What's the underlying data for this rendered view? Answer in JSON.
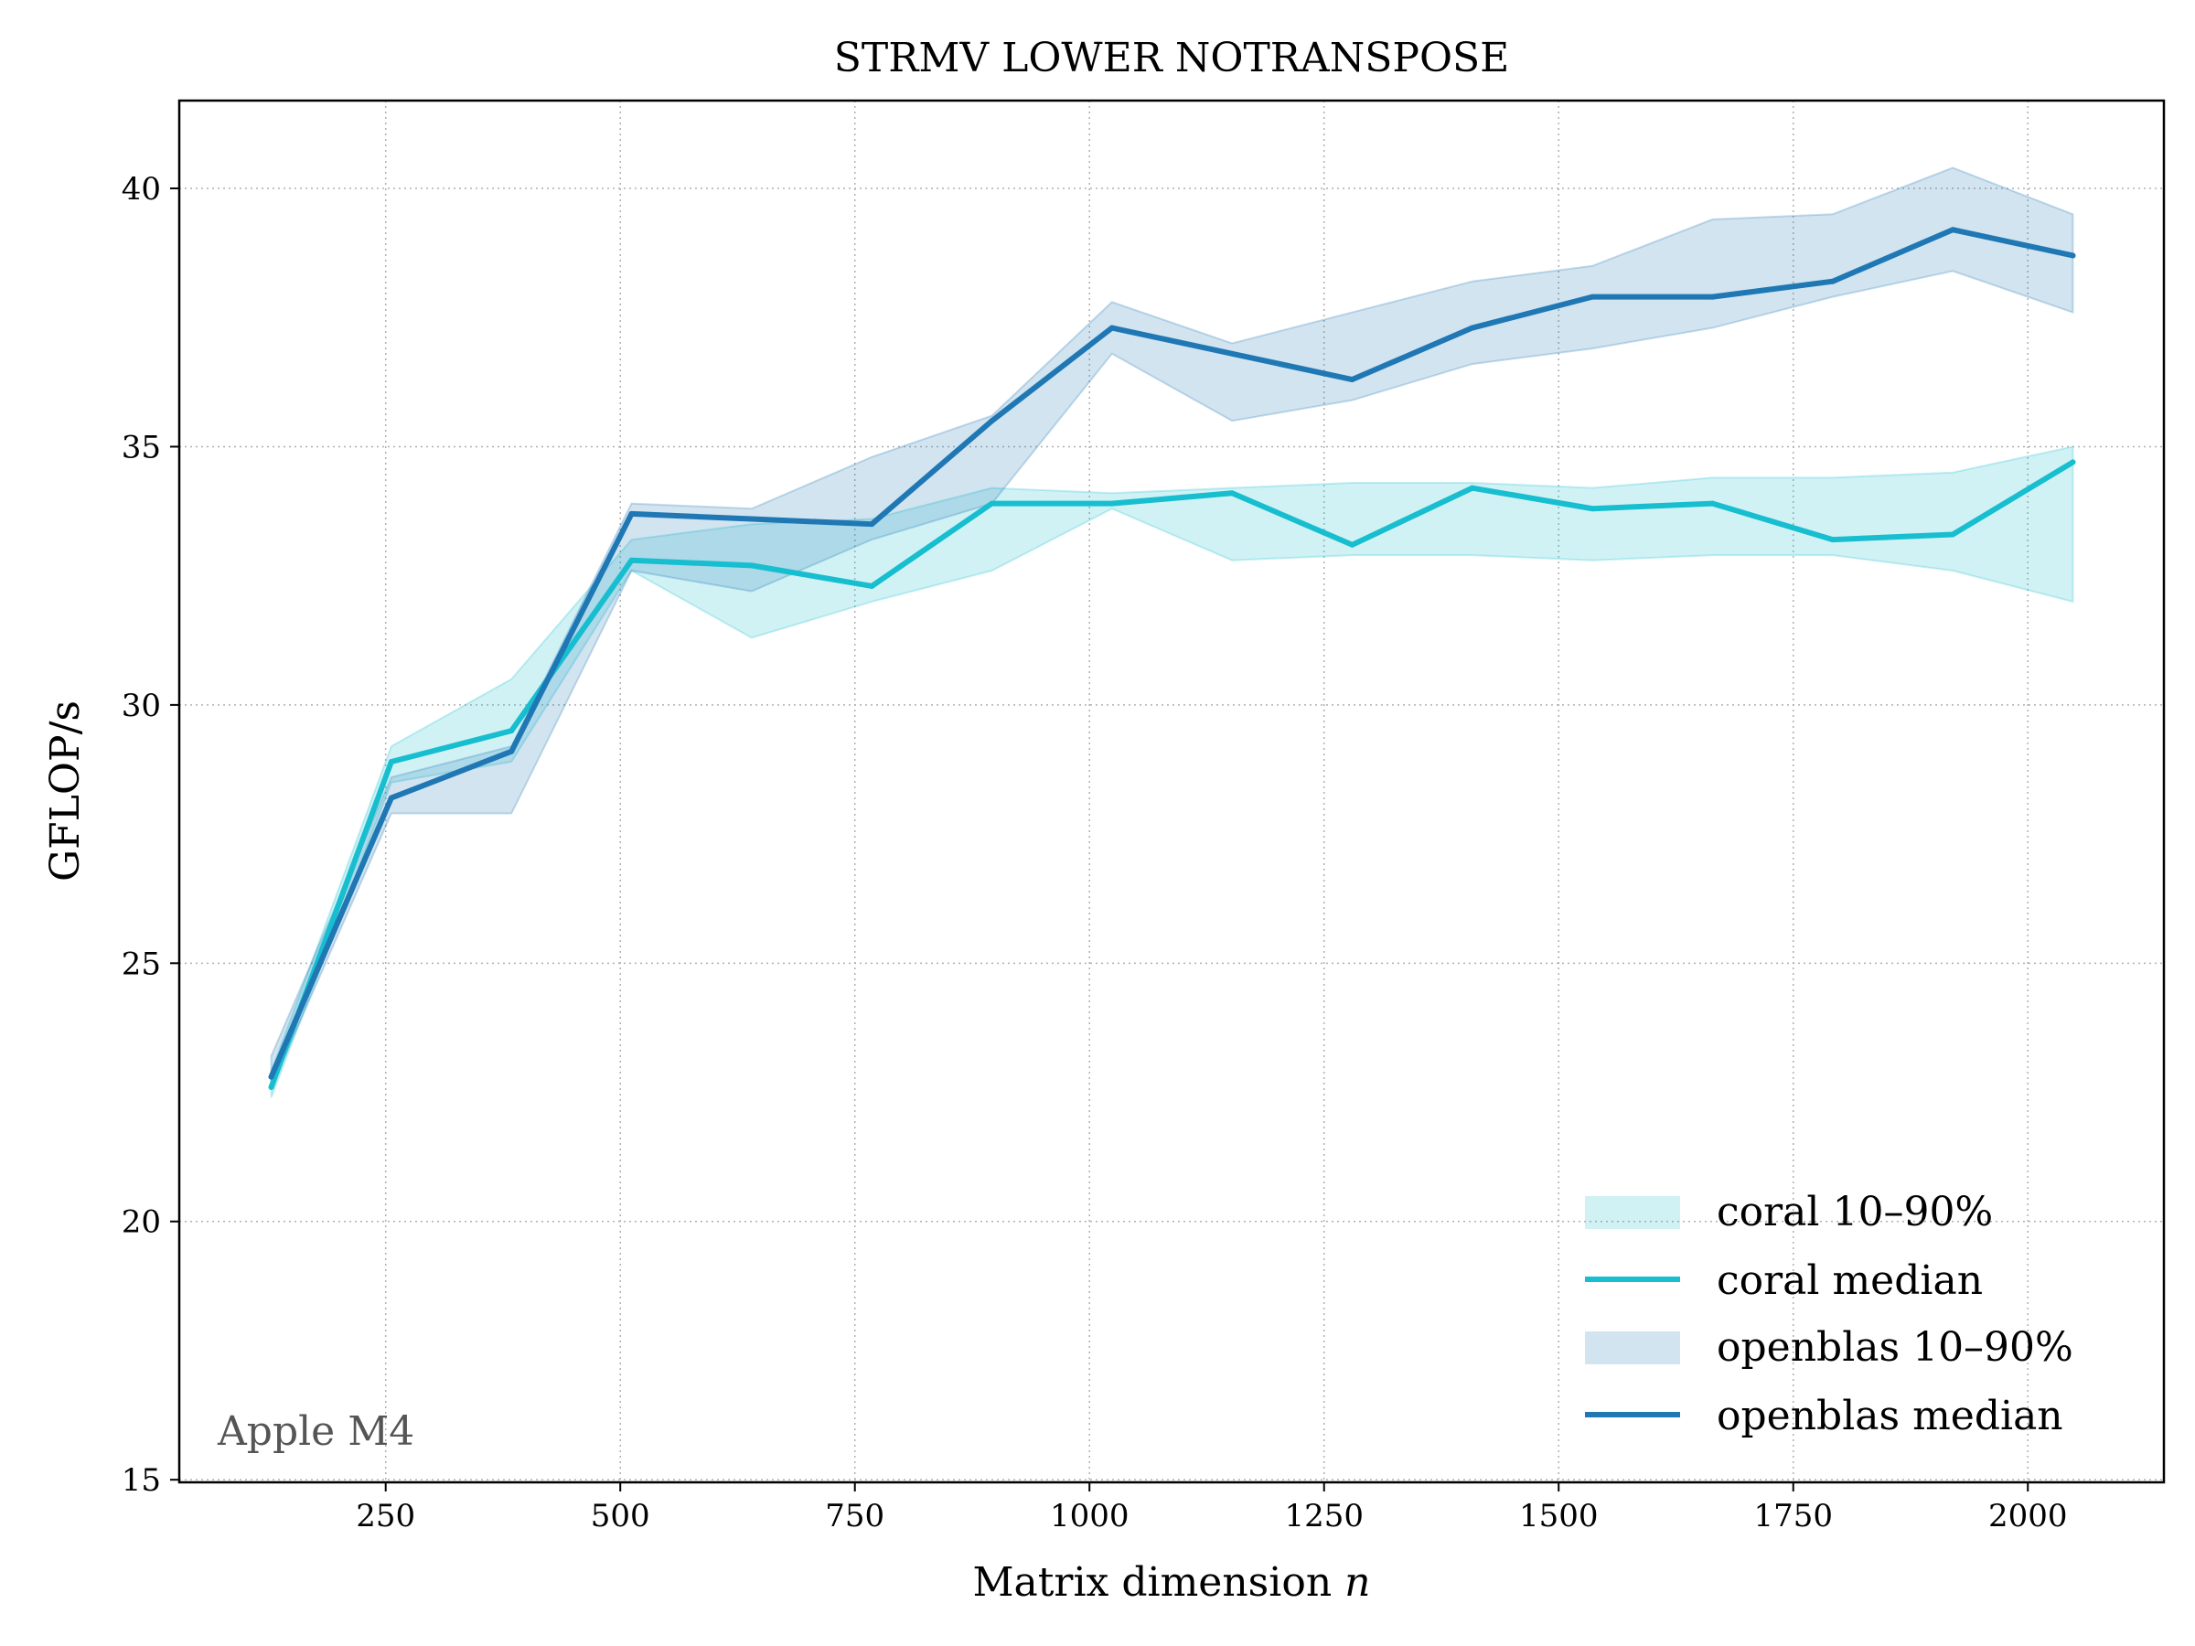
{
  "chart_data": {
    "type": "line",
    "title": "STRMV LOWER NOTRANSPOSE",
    "xlabel": "Matrix dimension",
    "xlabel_var": "n",
    "ylabel": "GFLOP/s",
    "annotation": "Apple M4",
    "xlim": [
      30,
      2145
    ],
    "ylim": [
      14.95,
      41.7
    ],
    "x_ticks": [
      250,
      500,
      750,
      1000,
      1250,
      1500,
      1750,
      2000
    ],
    "y_ticks": [
      15,
      20,
      25,
      30,
      35,
      40
    ],
    "grid": true,
    "legend_position": "lower-right",
    "x": [
      128,
      256,
      384,
      512,
      640,
      768,
      896,
      1024,
      1152,
      1280,
      1408,
      1536,
      1664,
      1792,
      1920,
      2048
    ],
    "series": [
      {
        "name": "coral median",
        "band_name": "coral 10–90%",
        "color": "#17becf",
        "median": [
          22.6,
          28.9,
          29.5,
          32.8,
          32.7,
          32.3,
          33.9,
          33.9,
          34.1,
          33.1,
          34.2,
          33.8,
          33.9,
          33.2,
          33.3,
          34.7
        ],
        "p10": [
          22.4,
          28.5,
          28.9,
          32.6,
          31.3,
          32.0,
          32.6,
          33.8,
          32.8,
          32.9,
          32.9,
          32.8,
          32.9,
          32.9,
          32.6,
          32.0
        ],
        "p90": [
          22.9,
          29.2,
          30.5,
          33.2,
          33.5,
          33.6,
          34.2,
          34.1,
          34.2,
          34.3,
          34.3,
          34.2,
          34.4,
          34.4,
          34.5,
          35.0
        ]
      },
      {
        "name": "openblas median",
        "band_name": "openblas 10–90%",
        "color": "#1f77b4",
        "median": [
          22.8,
          28.2,
          29.1,
          33.7,
          33.6,
          33.5,
          35.5,
          37.3,
          36.8,
          36.3,
          37.3,
          37.9,
          37.9,
          38.2,
          39.2,
          38.7
        ],
        "p10": [
          22.6,
          27.9,
          27.9,
          32.6,
          32.2,
          33.2,
          33.9,
          36.8,
          35.5,
          35.9,
          36.6,
          36.9,
          37.3,
          37.9,
          38.4,
          37.6
        ],
        "p90": [
          23.2,
          28.6,
          29.2,
          33.9,
          33.8,
          34.8,
          35.6,
          37.8,
          37.0,
          37.6,
          38.2,
          38.5,
          39.4,
          39.5,
          40.4,
          39.5
        ]
      }
    ]
  }
}
